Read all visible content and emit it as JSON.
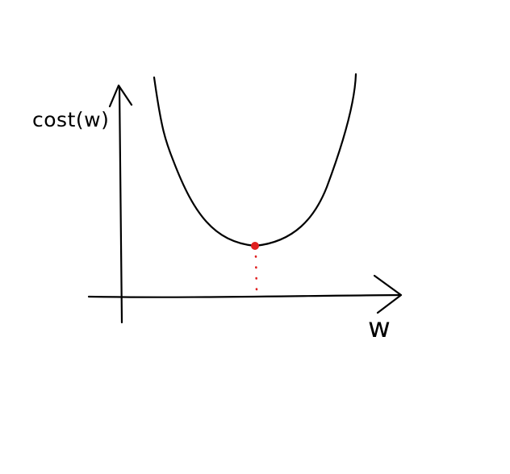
{
  "y_axis_label": "cost(w)",
  "x_axis_label": "w",
  "colors": {
    "ink": "#000000",
    "minimum_point": "#e02020",
    "background": "#ffffff"
  }
}
